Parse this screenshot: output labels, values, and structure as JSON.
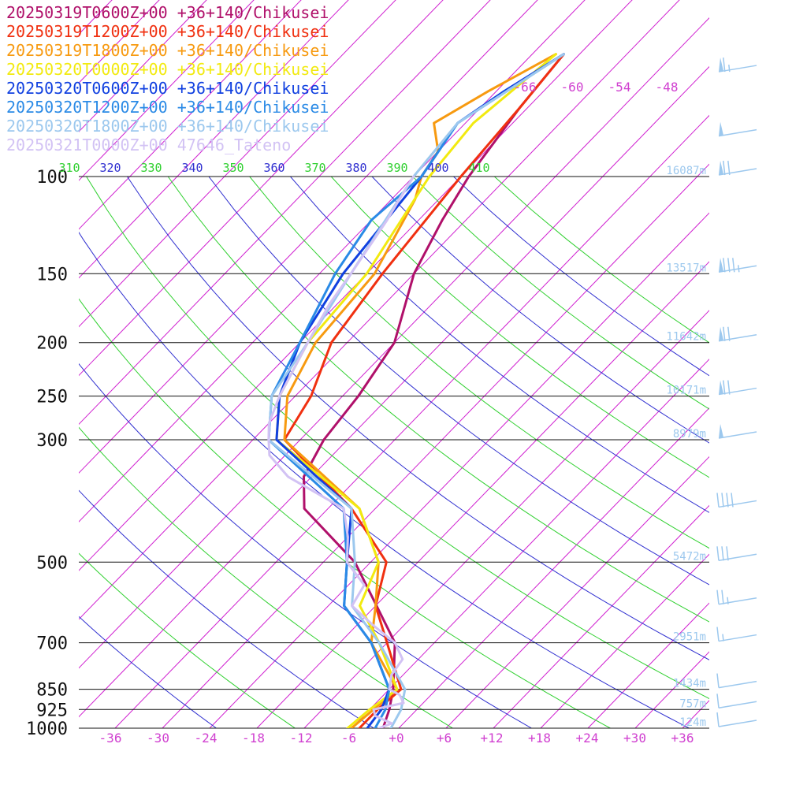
{
  "chart_data": {
    "type": "line",
    "subtype": "skew-T log-P sounding diagram",
    "legend_placement": "top-left",
    "pressure_levels": [
      100,
      150,
      200,
      250,
      300,
      500,
      700,
      850,
      925,
      1000
    ],
    "pressure_labels": [
      "100",
      "150",
      "200",
      "250",
      "300",
      "500",
      "700",
      "850",
      "925",
      "1000"
    ],
    "height_labels": [
      {
        "p": 100,
        "text": "16087m"
      },
      {
        "p": 150,
        "text": "13517m"
      },
      {
        "p": 200,
        "text": "11642m"
      },
      {
        "p": 250,
        "text": "10171m"
      },
      {
        "p": 300,
        "text": "8979m"
      },
      {
        "p": 500,
        "text": "5472m"
      },
      {
        "p": 700,
        "text": "2951m"
      },
      {
        "p": 850,
        "text": "1434m"
      },
      {
        "p": 925,
        "text": "757m"
      },
      {
        "p": 1000,
        "text": "124m"
      }
    ],
    "bottom_temperature_labels": [
      "-36",
      "-30",
      "-24",
      "-18",
      "-12",
      "-6",
      "+0",
      "+6",
      "+12",
      "+18",
      "+24",
      "+30",
      "+36"
    ],
    "top_temperature_labels": [
      "-66",
      "-60",
      "-54",
      "-48"
    ],
    "theta_labels": [
      "310",
      "320",
      "330",
      "340",
      "350",
      "360",
      "370",
      "380",
      "390",
      "400",
      "410"
    ],
    "colors": {
      "isotherm": "#d020d0",
      "isobar": "#111111",
      "theta_a": "#3030d0",
      "theta_b": "#30d030",
      "wind_barb": "#9cc8ee"
    },
    "series": [
      {
        "name": "20250319T0600Z+00 +36+140/Chikusei",
        "color": "#b0106a",
        "points": [
          [
            1000,
            -2.0
          ],
          [
            925,
            -3.5
          ],
          [
            850,
            -5.5
          ],
          [
            700,
            -11
          ],
          [
            500,
            -26
          ],
          [
            400,
            -39
          ],
          [
            350,
            -43
          ],
          [
            300,
            -45
          ],
          [
            250,
            -46
          ],
          [
            200,
            -48
          ],
          [
            150,
            -54
          ],
          [
            120,
            -57
          ],
          [
            100,
            -59
          ],
          [
            75,
            -61
          ],
          [
            60,
            -62
          ]
        ]
      },
      {
        "name": "20250319T1200Z+00 +36+140/Chikusei",
        "color": "#f03010",
        "points": [
          [
            1000,
            -5.0
          ],
          [
            925,
            -5.0
          ],
          [
            850,
            -4.5
          ],
          [
            700,
            -12
          ],
          [
            600,
            -18
          ],
          [
            500,
            -22
          ],
          [
            400,
            -33
          ],
          [
            300,
            -50
          ],
          [
            250,
            -52
          ],
          [
            200,
            -56
          ],
          [
            150,
            -58
          ],
          [
            100,
            -60
          ],
          [
            75,
            -61
          ],
          [
            60,
            -62
          ]
        ]
      },
      {
        "name": "20250319T1800Z+00 +36+140/Chikusei",
        "color": "#f79a10",
        "points": [
          [
            1000,
            -6.0
          ],
          [
            925,
            -5.5
          ],
          [
            850,
            -5.0
          ],
          [
            700,
            -14
          ],
          [
            600,
            -18
          ],
          [
            500,
            -23
          ],
          [
            400,
            -32
          ],
          [
            300,
            -50
          ],
          [
            250,
            -55
          ],
          [
            200,
            -58
          ],
          [
            150,
            -59
          ],
          [
            110,
            -63
          ],
          [
            100,
            -65
          ],
          [
            90,
            -66
          ],
          [
            80,
            -70
          ],
          [
            70,
            -67
          ],
          [
            60,
            -63
          ]
        ]
      },
      {
        "name": "20250320T0000Z+00 +36+140/Chikusei",
        "color": "#f2ea10",
        "points": [
          [
            1000,
            -6.5
          ],
          [
            925,
            -6.0
          ],
          [
            850,
            -5.0
          ],
          [
            700,
            -13
          ],
          [
            600,
            -20
          ],
          [
            500,
            -23
          ],
          [
            400,
            -32
          ],
          [
            300,
            -51
          ],
          [
            250,
            -56
          ],
          [
            200,
            -59
          ],
          [
            150,
            -60
          ],
          [
            100,
            -64
          ],
          [
            80,
            -65
          ],
          [
            60,
            -63
          ]
        ]
      },
      {
        "name": "20250320T0600Z+00 +36+140/Chikusei",
        "color": "#1040e0",
        "points": [
          [
            1000,
            -4.0
          ],
          [
            925,
            -4.5
          ],
          [
            850,
            -6.0
          ],
          [
            700,
            -14
          ],
          [
            600,
            -22
          ],
          [
            500,
            -27
          ],
          [
            400,
            -33
          ],
          [
            300,
            -51
          ],
          [
            250,
            -56
          ],
          [
            200,
            -60
          ],
          [
            150,
            -63
          ],
          [
            100,
            -65
          ],
          [
            80,
            -67
          ],
          [
            70,
            -65
          ],
          [
            60,
            -62
          ]
        ]
      },
      {
        "name": "20250320T1200Z+00 +36+140/Chikusei",
        "color": "#2a8ae6",
        "points": [
          [
            1000,
            -3.0
          ],
          [
            925,
            -4.0
          ],
          [
            850,
            -6.0
          ],
          [
            700,
            -14
          ],
          [
            600,
            -22
          ],
          [
            500,
            -27
          ],
          [
            400,
            -34
          ],
          [
            300,
            -52
          ],
          [
            250,
            -57
          ],
          [
            200,
            -60
          ],
          [
            150,
            -64
          ],
          [
            120,
            -66
          ],
          [
            100,
            -65
          ],
          [
            80,
            -67
          ],
          [
            60,
            -62
          ]
        ]
      },
      {
        "name": "20250320T1800Z+00 +36+140/Chikusei",
        "color": "#9cc8ee",
        "points": [
          [
            1000,
            -1.0
          ],
          [
            925,
            -2.0
          ],
          [
            850,
            -4.0
          ],
          [
            700,
            -13
          ],
          [
            600,
            -21
          ],
          [
            500,
            -26
          ],
          [
            400,
            -33
          ],
          [
            300,
            -52
          ],
          [
            250,
            -57
          ],
          [
            200,
            -59
          ],
          [
            150,
            -62
          ],
          [
            100,
            -66
          ],
          [
            80,
            -67
          ],
          [
            60,
            -62
          ]
        ]
      },
      {
        "name": "20250321T0000Z+00 47646_Tateno",
        "color": "#d2c2f4",
        "points": [
          [
            1000,
            -2.5
          ],
          [
            980,
            -1.5
          ],
          [
            950,
            -4.5
          ],
          [
            925,
            -5.5
          ],
          [
            900,
            -2.5
          ],
          [
            870,
            -4.0
          ],
          [
            850,
            -6.0
          ],
          [
            800,
            -7.5
          ],
          [
            750,
            -8.0
          ],
          [
            700,
            -11
          ],
          [
            650,
            -16
          ],
          [
            600,
            -21
          ],
          [
            550,
            -22
          ],
          [
            500,
            -27
          ],
          [
            450,
            -30
          ],
          [
            400,
            -34
          ],
          [
            350,
            -45
          ],
          [
            320,
            -50
          ],
          [
            300,
            -52
          ],
          [
            280,
            -54
          ],
          [
            250,
            -56
          ],
          [
            200,
            -59
          ],
          [
            170,
            -61
          ],
          [
            150,
            -62
          ],
          [
            120,
            -64
          ],
          [
            110,
            -65
          ],
          [
            100,
            -66
          ]
        ]
      }
    ],
    "wind_barbs": [
      {
        "p": 65,
        "speed_kt": 65
      },
      {
        "p": 85,
        "speed_kt": 50
      },
      {
        "p": 100,
        "speed_kt": 70
      },
      {
        "p": 150,
        "speed_kt": 85
      },
      {
        "p": 200,
        "speed_kt": 70
      },
      {
        "p": 250,
        "speed_kt": 70
      },
      {
        "p": 300,
        "speed_kt": 50
      },
      {
        "p": 400,
        "speed_kt": 40
      },
      {
        "p": 500,
        "speed_kt": 30
      },
      {
        "p": 600,
        "speed_kt": 25
      },
      {
        "p": 700,
        "speed_kt": 15
      },
      {
        "p": 850,
        "speed_kt": 10
      },
      {
        "p": 925,
        "speed_kt": 10
      },
      {
        "p": 1000,
        "speed_kt": 10
      }
    ]
  }
}
